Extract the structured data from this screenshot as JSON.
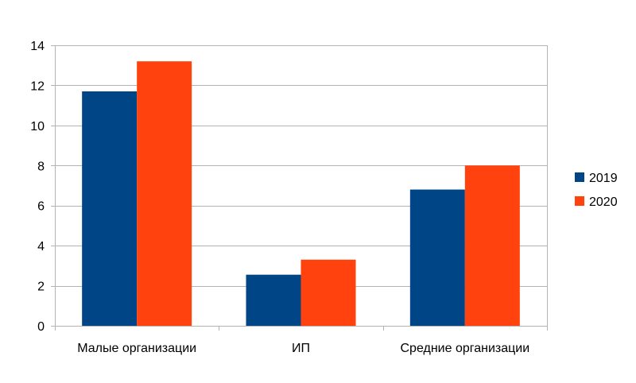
{
  "chart_data": {
    "type": "bar",
    "categories": [
      "Малые организации",
      "ИП",
      "Средние организации"
    ],
    "series": [
      {
        "name": "2019",
        "values": [
          11.7,
          2.55,
          6.8
        ],
        "color": "#004586"
      },
      {
        "name": "2020",
        "values": [
          13.2,
          3.3,
          8.0
        ],
        "color": "#ff420e"
      }
    ],
    "ylim": [
      0,
      14
    ],
    "yticks": [
      0,
      2,
      4,
      6,
      8,
      10,
      12,
      14
    ],
    "grid": true,
    "legend_position": "right"
  }
}
